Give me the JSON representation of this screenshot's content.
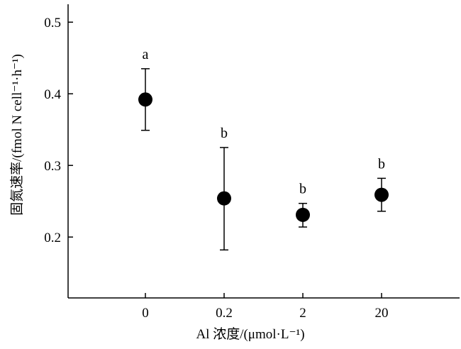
{
  "chart_data": {
    "type": "scatter",
    "title": "",
    "xlabel": "Al 浓度/(μmol·L⁻¹)",
    "ylabel": "固氮速率/(fmol N cell⁻¹·h⁻¹)",
    "categories": [
      "0",
      "0.2",
      "2",
      "20"
    ],
    "y_ticks": [
      "0.2",
      "0.3",
      "0.4",
      "0.5"
    ],
    "ylim": [
      0.115,
      0.525
    ],
    "grid": false,
    "legend": "none",
    "marker_color": "#000000",
    "series": [
      {
        "values": [
          0.392,
          0.254,
          0.231,
          0.259
        ],
        "error_upper": [
          0.435,
          0.325,
          0.247,
          0.282
        ],
        "error_lower": [
          0.349,
          0.182,
          0.214,
          0.236
        ],
        "labels": [
          "a",
          "b",
          "b",
          "b"
        ]
      }
    ]
  }
}
